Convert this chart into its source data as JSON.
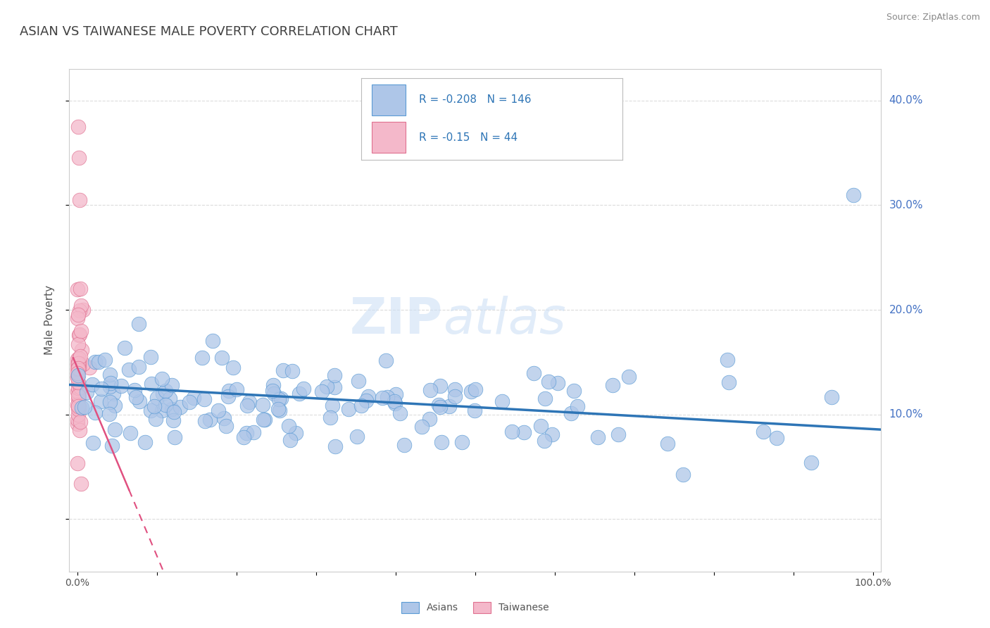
{
  "title": "ASIAN VS TAIWANESE MALE POVERTY CORRELATION CHART",
  "source": "Source: ZipAtlas.com",
  "ylabel": "Male Poverty",
  "asian_R": -0.208,
  "asian_N": 146,
  "taiwanese_R": -0.15,
  "taiwanese_N": 44,
  "asian_color": "#aec6e8",
  "asian_edge_color": "#5b9bd5",
  "asian_line_color": "#2e75b6",
  "taiwanese_color": "#f4b8ca",
  "taiwanese_edge_color": "#e07090",
  "taiwanese_line_color": "#e05080",
  "background_color": "#ffffff",
  "grid_color": "#cccccc",
  "title_color": "#404040",
  "yaxis_label_color": "#4472c4",
  "watermark_zip": "ZIP",
  "watermark_atlas": "atlas",
  "legend_text_color": "#2e75b6"
}
